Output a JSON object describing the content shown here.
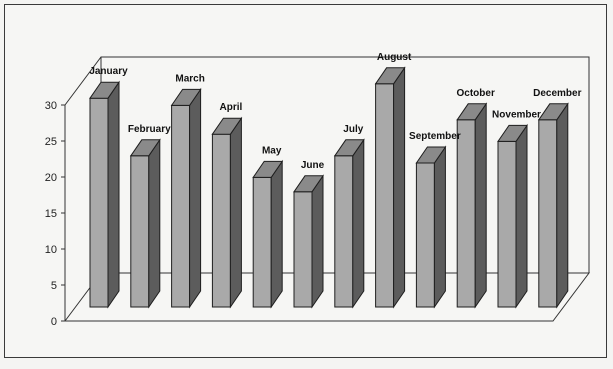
{
  "chart_data": {
    "type": "bar",
    "style": "3d",
    "title": "",
    "xlabel": "",
    "ylabel": "",
    "ylim": [
      0,
      30
    ],
    "yticks": [
      0,
      5,
      10,
      15,
      20,
      25,
      30
    ],
    "grid": false,
    "legend": "none",
    "categories": [
      "January",
      "February",
      "March",
      "April",
      "May",
      "June",
      "July",
      "August",
      "September",
      "October",
      "November",
      "December"
    ],
    "values": [
      29,
      21,
      28,
      24,
      18,
      16,
      21,
      31,
      20,
      26,
      23,
      26
    ],
    "colors": {
      "bar_front": "#a9a9a9",
      "bar_side": "#5c5c5c",
      "bar_top": "#8a8a8a",
      "outline": "#1e1e1e",
      "axis": "#333333"
    }
  }
}
